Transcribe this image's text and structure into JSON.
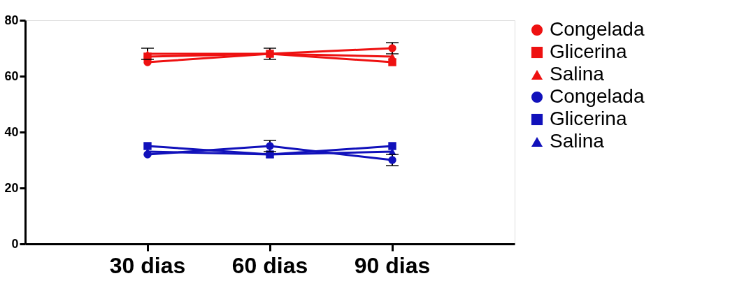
{
  "chart_data": {
    "type": "line",
    "categories": [
      "30 dias",
      "60 dias",
      "90 dias"
    ],
    "series": [
      {
        "name": "Congelada",
        "color": "#ee1111",
        "marker": "circle",
        "values": [
          65,
          68,
          70
        ],
        "errors": [
          null,
          null,
          2
        ]
      },
      {
        "name": "Glicerina",
        "color": "#ee1111",
        "marker": "square",
        "values": [
          67,
          68,
          65
        ],
        "errors": [
          null,
          2,
          null
        ]
      },
      {
        "name": "Salina",
        "color": "#ee1111",
        "marker": "triangle",
        "values": [
          68,
          68,
          67
        ],
        "errors": [
          2,
          null,
          null
        ]
      },
      {
        "name": "Congelada",
        "color": "#1111bb",
        "marker": "circle",
        "values": [
          32,
          35,
          30
        ],
        "errors": [
          null,
          2,
          2
        ]
      },
      {
        "name": "Glicerina",
        "color": "#1111bb",
        "marker": "square",
        "values": [
          35,
          32,
          35
        ]
      },
      {
        "name": "Salina",
        "color": "#1111bb",
        "marker": "triangle",
        "values": [
          33,
          32,
          33
        ]
      }
    ],
    "ylim": [
      0,
      80
    ],
    "yticks": [
      0,
      20,
      40,
      60,
      80
    ],
    "grid": false,
    "legend": "right",
    "line_style": "solid"
  }
}
